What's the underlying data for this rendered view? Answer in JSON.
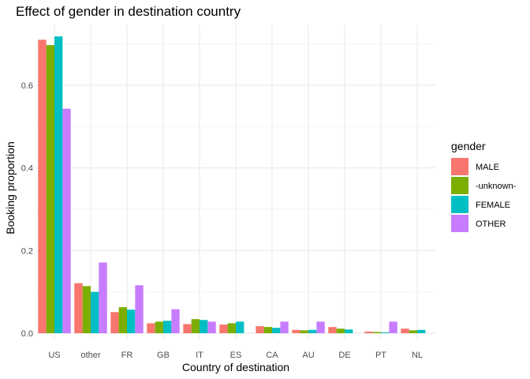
{
  "chart_data": {
    "type": "bar",
    "title": "Effect of gender in destination country",
    "xlabel": "Country of destination",
    "ylabel": "Booking proportion",
    "ylim": [
      0,
      0.745
    ],
    "yticks": [
      0.0,
      0.2,
      0.4,
      0.6
    ],
    "ytick_labels": [
      "0.0",
      "0.2",
      "0.4",
      "0.6"
    ],
    "grid": true,
    "legend": {
      "title": "gender",
      "placement": "right"
    },
    "categories": [
      "US",
      "other",
      "FR",
      "GB",
      "IT",
      "ES",
      "CA",
      "AU",
      "DE",
      "PT",
      "NL"
    ],
    "series": [
      {
        "name": "MALE",
        "color": "#F8766D",
        "values": [
          0.71,
          0.121,
          0.051,
          0.024,
          0.022,
          0.021,
          0.017,
          0.008,
          0.015,
          0.004,
          0.011
        ]
      },
      {
        "name": "-unknown-",
        "color": "#7CAE00",
        "values": [
          0.697,
          0.114,
          0.063,
          0.028,
          0.034,
          0.024,
          0.015,
          0.007,
          0.011,
          0.003,
          0.007
        ]
      },
      {
        "name": "FEMALE",
        "color": "#00BFC4",
        "values": [
          0.718,
          0.1,
          0.057,
          0.03,
          0.032,
          0.028,
          0.013,
          0.008,
          0.009,
          0.002,
          0.008
        ]
      },
      {
        "name": "OTHER",
        "color": "#C77CFF",
        "values": [
          0.543,
          0.171,
          0.116,
          0.058,
          0.028,
          0.0,
          0.028,
          0.028,
          0.0,
          0.028,
          0.0
        ]
      }
    ]
  }
}
